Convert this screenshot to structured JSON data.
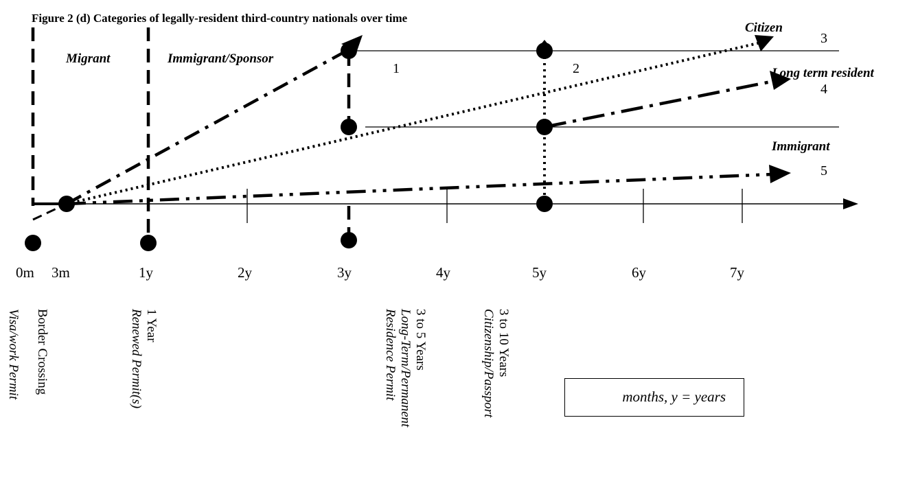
{
  "title": "Figure 2 (d) Categories of legally-resident third-country nationals over time",
  "periods": {
    "migrant": "Migrant",
    "immigrant_sponsor": "Immigrant/Sponsor"
  },
  "outcomes": {
    "citizen": "Citizen",
    "long_term_resident": "Long term resident",
    "immigrant": "Immigrant"
  },
  "path_numbers": [
    "1",
    "2",
    "3",
    "4",
    "5"
  ],
  "axis": {
    "ticks": [
      "0m",
      "3m",
      "1y",
      "2y",
      "3y",
      "4y",
      "5y",
      "6y",
      "7y"
    ]
  },
  "milestones": {
    "visa": {
      "line1": "Visa/work Permit"
    },
    "border": {
      "line1": "Border Crossing"
    },
    "renewed": {
      "line1": "1 Year",
      "line2": "Renewed Permit(s)"
    },
    "long_term": {
      "line1": "3 to 5 Years",
      "line2": "Long-Term/Permanent",
      "line3": "Residence Permit"
    },
    "citizenship": {
      "line1": "3 to 10 Years",
      "line2": "Citizenship/Passport"
    }
  },
  "legend": {
    "text": "months, y = years"
  }
}
